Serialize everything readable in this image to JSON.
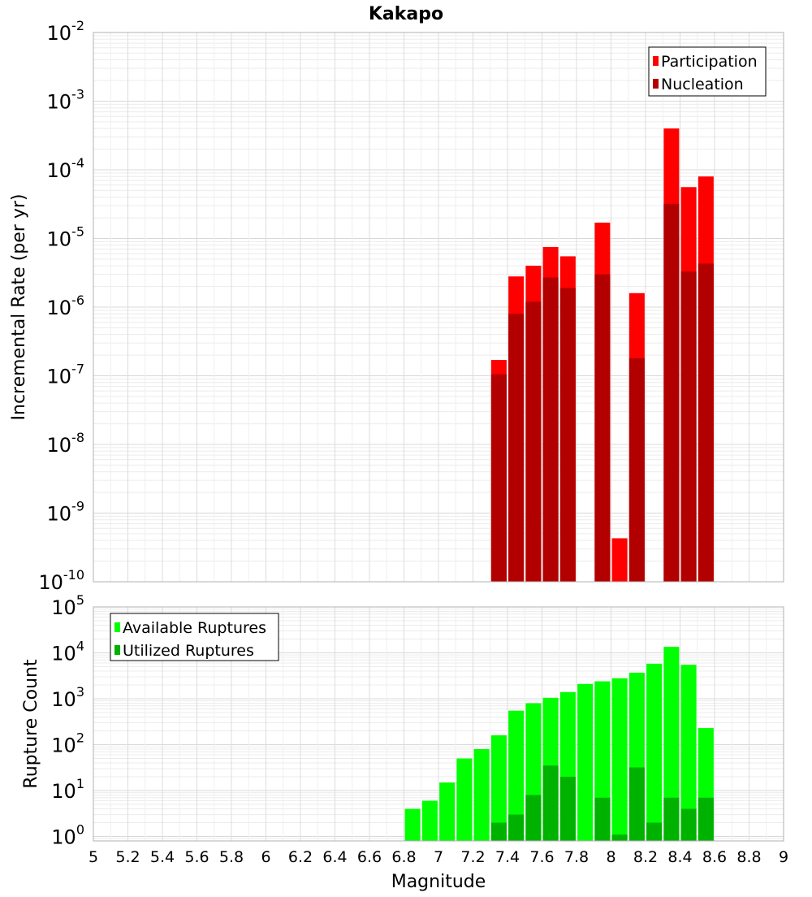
{
  "chart_data": [
    {
      "type": "bar",
      "title": "Kakapo",
      "ylabel": "Incremental Rate (per yr)",
      "xlabel": "",
      "yscale": "log",
      "ylim": [
        1e-10,
        0.01
      ],
      "xlim": [
        5,
        9
      ],
      "grid": true,
      "legend_position": "top-right",
      "x": [
        7.35,
        7.45,
        7.55,
        7.65,
        7.75,
        7.95,
        8.05,
        8.15,
        8.35,
        8.45,
        8.55
      ],
      "series": [
        {
          "name": "Participation",
          "color": "#ff0000",
          "values": [
            1.7e-07,
            2.8e-06,
            4e-06,
            7.5e-06,
            5.5e-06,
            1.7e-05,
            4.3e-10,
            1.6e-06,
            0.0004,
            5.6e-05,
            8e-05
          ]
        },
        {
          "name": "Nucleation",
          "color": "#b20000",
          "values": [
            1.05e-07,
            8e-07,
            1.2e-06,
            2.7e-06,
            1.9e-06,
            3e-06,
            null,
            1.8e-07,
            3.2e-05,
            3.3e-06,
            4.3e-06
          ]
        }
      ],
      "y_ticks": [
        {
          "base": "10",
          "exp": "-2"
        },
        {
          "base": "10",
          "exp": "-3"
        },
        {
          "base": "10",
          "exp": "-4"
        },
        {
          "base": "10",
          "exp": "-5"
        },
        {
          "base": "10",
          "exp": "-6"
        },
        {
          "base": "10",
          "exp": "-7"
        },
        {
          "base": "10",
          "exp": "-8"
        },
        {
          "base": "10",
          "exp": "-9"
        },
        {
          "base": "10",
          "exp": "-10"
        }
      ]
    },
    {
      "type": "bar",
      "title": "",
      "ylabel": "Rupture Count",
      "xlabel": "Magnitude",
      "yscale": "log",
      "ylim": [
        0.8,
        100000.0
      ],
      "xlim": [
        5,
        9
      ],
      "grid": true,
      "legend_position": "top-left",
      "x": [
        6.85,
        6.95,
        7.05,
        7.15,
        7.25,
        7.35,
        7.45,
        7.55,
        7.65,
        7.75,
        7.85,
        7.95,
        8.05,
        8.15,
        8.25,
        8.35,
        8.45,
        8.55
      ],
      "series": [
        {
          "name": "Available Ruptures",
          "color": "#00ff00",
          "values": [
            4,
            6,
            15,
            50,
            80,
            160,
            550,
            800,
            1050,
            1400,
            2100,
            2400,
            2800,
            3700,
            5800,
            13500,
            5500,
            230
          ]
        },
        {
          "name": "Utilized Ruptures",
          "color": "#00b200",
          "values": [
            null,
            null,
            null,
            null,
            null,
            2,
            3,
            8,
            35,
            20,
            null,
            7,
            1.1,
            32,
            2,
            7,
            4,
            7
          ]
        }
      ],
      "y_ticks": [
        {
          "base": "10",
          "exp": "5"
        },
        {
          "base": "10",
          "exp": "4"
        },
        {
          "base": "10",
          "exp": "3"
        },
        {
          "base": "10",
          "exp": "2"
        },
        {
          "base": "10",
          "exp": "1"
        },
        {
          "base": "10",
          "exp": "0"
        }
      ],
      "x_ticks": [
        "5",
        "5.2",
        "5.4",
        "5.6",
        "5.8",
        "6",
        "6.2",
        "6.4",
        "6.6",
        "6.8",
        "7",
        "7.2",
        "7.4",
        "7.6",
        "7.8",
        "8",
        "8.2",
        "8.4",
        "8.6",
        "8.8",
        "9"
      ]
    }
  ]
}
